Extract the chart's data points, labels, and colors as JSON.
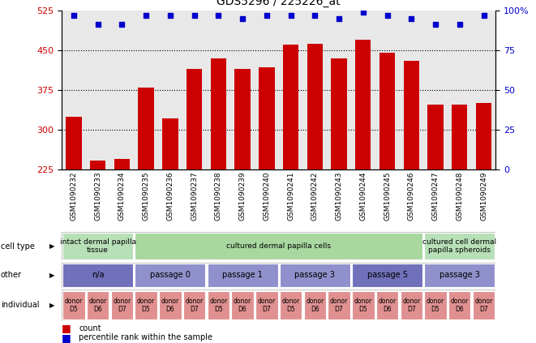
{
  "title": "GDS5296 / 225226_at",
  "samples": [
    "GSM1090232",
    "GSM1090233",
    "GSM1090234",
    "GSM1090235",
    "GSM1090236",
    "GSM1090237",
    "GSM1090238",
    "GSM1090239",
    "GSM1090240",
    "GSM1090241",
    "GSM1090242",
    "GSM1090243",
    "GSM1090244",
    "GSM1090245",
    "GSM1090246",
    "GSM1090247",
    "GSM1090248",
    "GSM1090249"
  ],
  "counts": [
    325,
    242,
    246,
    380,
    322,
    415,
    435,
    415,
    418,
    460,
    462,
    435,
    470,
    445,
    430,
    348,
    348,
    350
  ],
  "percentiles": [
    97,
    91,
    91,
    97,
    97,
    97,
    97,
    95,
    97,
    97,
    97,
    95,
    99,
    97,
    95,
    91,
    91,
    97
  ],
  "ylim_left": [
    225,
    525
  ],
  "ylim_right": [
    0,
    100
  ],
  "yticks_left": [
    225,
    300,
    375,
    450,
    525
  ],
  "yticks_right": [
    0,
    25,
    50,
    75,
    100
  ],
  "bar_color": "#cc0000",
  "dot_color": "#0000cc",
  "bg_color": "#e8e8e8",
  "cell_type_groups": [
    {
      "label": "intact dermal papilla\ntissue",
      "start": 0,
      "end": 3,
      "color": "#b8e0b8"
    },
    {
      "label": "cultured dermal papilla cells",
      "start": 3,
      "end": 15,
      "color": "#a8d8a0"
    },
    {
      "label": "cultured cell dermal\npapilla spheroids",
      "start": 15,
      "end": 18,
      "color": "#b8e0b8"
    }
  ],
  "other_groups": [
    {
      "label": "n/a",
      "start": 0,
      "end": 3,
      "color": "#7070bb"
    },
    {
      "label": "passage 0",
      "start": 3,
      "end": 6,
      "color": "#9090cc"
    },
    {
      "label": "passage 1",
      "start": 6,
      "end": 9,
      "color": "#9090cc"
    },
    {
      "label": "passage 3",
      "start": 9,
      "end": 12,
      "color": "#9090cc"
    },
    {
      "label": "passage 5",
      "start": 12,
      "end": 15,
      "color": "#7070bb"
    },
    {
      "label": "passage 3",
      "start": 15,
      "end": 18,
      "color": "#9090cc"
    }
  ],
  "individual_labels": [
    "donor\nD5",
    "donor\nD6",
    "donor\nD7",
    "donor\nD5",
    "donor\nD6",
    "donor\nD7",
    "donor\nD5",
    "donor\nD6",
    "donor\nD7",
    "donor\nD5",
    "donor\nD6",
    "donor\nD7",
    "donor\nD5",
    "donor\nD6",
    "donor\nD7",
    "donor\nD5",
    "donor\nD6",
    "donor\nD7"
  ],
  "ind_color": "#e09090",
  "legend_count_color": "#cc0000",
  "legend_pct_color": "#0000cc"
}
